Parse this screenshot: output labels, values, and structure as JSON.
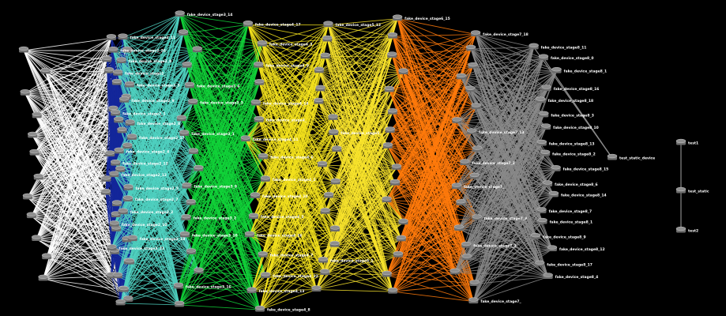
{
  "colors": {
    "background": "#000000",
    "stage_links": [
      "#ffffff",
      "#14279a",
      "#4fd0c0",
      "#12d33a",
      "#f3e21d",
      "#f8e32b",
      "#ff7a0c",
      "#8a8a8a"
    ],
    "node": "#8e8e8e",
    "label": "#ffffff"
  },
  "icons": {
    "node": "router-icon"
  },
  "stages": [
    {
      "id": 0,
      "nodes": [
        "",
        "",
        "",
        "",
        "",
        "",
        "",
        "",
        "",
        "",
        "",
        ""
      ]
    },
    {
      "id": 1,
      "nodes": [
        "",
        "",
        "",
        "",
        "",
        "",
        "",
        "",
        "",
        "",
        "",
        "",
        "",
        "",
        "",
        "",
        "",
        "",
        "",
        "",
        "",
        "",
        ""
      ]
    },
    {
      "id": 2,
      "nodes": [
        "fake_device_stage2_11",
        "fake_device_stage2_26",
        "fake_device_stage2_0",
        "fake_device_stage2_",
        "fake_device_stage2_3",
        "fake_device_stage2_9",
        "fake_device_stage2_1",
        "fake_device_stage2_8",
        "fake_device_stage2_17",
        "fake_device_stage2_4",
        "fake_device_stage2_13",
        "fake_device_stage2_12",
        "fake_device_stage2_5",
        "fake_device_stage2_7",
        "fake_device_stage2_2",
        "fake_device_stage2_10",
        "fake_device_stage2_18",
        "fake_device_stage2_21",
        "",
        "",
        "",
        ""
      ]
    },
    {
      "id": 3,
      "nodes": [
        "fake_device_stage3_14",
        "",
        "",
        "",
        "fake_device_stage3_6",
        "fake_device_stage3_3",
        "",
        "fake_device_stage3_1",
        "",
        "",
        "fake_device_stage3_9",
        "",
        "fake_device_stage3_2",
        "fake_device_stage3_10",
        "",
        "",
        "fake_device_stage3_16",
        ""
      ]
    },
    {
      "id": 4,
      "nodes": [
        "fake_device_stage4_17",
        "fake_device_stage4_3",
        "fake_device_stage4_9",
        "",
        "fake_device_stage4_14",
        "fake_device_stage4_",
        "fake_device_stage4_11",
        "fake_device_stage4_6",
        "fake_device_stage4_2",
        "fake_device_stage4_10",
        "fake_device_stage4_5",
        "fake_device_stage4_16",
        "fake_device_stage4_7",
        "fake_device_stage4_12",
        "fake_device_stage4_13",
        "fake_device_stage4_8"
      ]
    },
    {
      "id": 5,
      "nodes": [
        "fake_device_stage5_12",
        "",
        "",
        "",
        "",
        "",
        "",
        "fake_device_stage5_",
        "",
        "",
        "",
        "",
        "",
        "",
        "",
        "fake_device_stage5_1",
        "",
        ""
      ]
    },
    {
      "id": 6,
      "nodes": [
        "fake_device_stage6_15",
        "",
        "",
        "",
        "",
        "",
        "",
        "",
        "",
        "",
        "",
        "",
        "",
        "",
        "",
        ""
      ]
    },
    {
      "id": 7,
      "nodes": [
        "fake_device_stage7_18",
        "",
        "",
        "",
        "",
        "",
        "",
        "fake_device_stage7_13",
        "",
        "fake_device_stage7_2",
        "",
        "fake_device_stage7_",
        "",
        "fake_device_stage7_3",
        "",
        "fake_device_stage7_1",
        "",
        "",
        "",
        "fake_device_stage7_"
      ]
    },
    {
      "id": 8,
      "nodes": [
        "fake_device_stage8_11",
        "fake_device_stage8_0",
        "fake_device_stage8_1",
        "fake_device_stage8_16",
        "fake_device_stage8_18",
        "fake_device_stage8_3",
        "fake_device_stage8_10",
        "fake_device_stage8_13",
        "fake_device_stage8_2",
        "fake_device_stage8_15",
        "fake_device_stage8_6",
        "fake_device_stage8_14",
        "fake_device_stage8_7",
        "fake_device_stage8_1",
        "fake_device_stage8_9",
        "fake_device_stage8_12",
        "fake_device_stage8_17",
        "fake_device_stage8_4"
      ]
    }
  ],
  "extra_nodes": [
    {
      "label": "test_static_device"
    },
    {
      "label": "test1"
    },
    {
      "label": "test_static"
    },
    {
      "label": "test2"
    }
  ],
  "extra_links": [
    {
      "from": "fake_device_stage8_11",
      "to": "test_static_device"
    },
    {
      "from": "fake_device_stage8_0",
      "to": "test_static_device"
    },
    {
      "from": "test1",
      "to": "test_static"
    },
    {
      "from": "test_static",
      "to": "test2"
    }
  ]
}
